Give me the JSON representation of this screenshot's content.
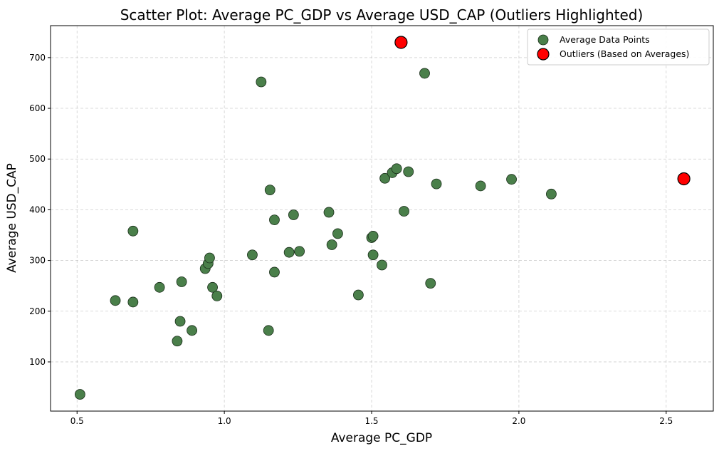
{
  "chart_data": {
    "type": "scatter",
    "title": "Scatter Plot: Average PC_GDP vs Average USD_CAP (Outliers Highlighted)",
    "xlabel": "Average PC_GDP",
    "ylabel": "Average USD_CAP",
    "xlim": [
      0.41,
      2.66
    ],
    "ylim": [
      3,
      763
    ],
    "xticks": [
      0.5,
      1.0,
      1.5,
      2.0,
      2.5
    ],
    "xtick_labels": [
      "0.5",
      "1.0",
      "1.5",
      "2.0",
      "2.5"
    ],
    "yticks": [
      100,
      200,
      300,
      400,
      500,
      600,
      700
    ],
    "ytick_labels": [
      "100",
      "200",
      "300",
      "400",
      "500",
      "600",
      "700"
    ],
    "grid": true,
    "legend_position": "top-right",
    "series": [
      {
        "name": "Average Data Points",
        "color": "#4a7f4a",
        "edge_color": "#1a2e1a",
        "points": [
          [
            0.51,
            36
          ],
          [
            0.63,
            221
          ],
          [
            0.69,
            218
          ],
          [
            0.69,
            358
          ],
          [
            0.78,
            247
          ],
          [
            0.84,
            141
          ],
          [
            0.85,
            180
          ],
          [
            0.855,
            258
          ],
          [
            0.89,
            162
          ],
          [
            0.935,
            284
          ],
          [
            0.945,
            294
          ],
          [
            0.95,
            305
          ],
          [
            0.96,
            247
          ],
          [
            0.975,
            230
          ],
          [
            1.095,
            311
          ],
          [
            1.125,
            652
          ],
          [
            1.15,
            162
          ],
          [
            1.155,
            439
          ],
          [
            1.17,
            380
          ],
          [
            1.17,
            277
          ],
          [
            1.22,
            316
          ],
          [
            1.235,
            390
          ],
          [
            1.255,
            318
          ],
          [
            1.355,
            395
          ],
          [
            1.365,
            331
          ],
          [
            1.385,
            353
          ],
          [
            1.455,
            232
          ],
          [
            1.5,
            345
          ],
          [
            1.505,
            348
          ],
          [
            1.505,
            311
          ],
          [
            1.535,
            291
          ],
          [
            1.545,
            462
          ],
          [
            1.57,
            473
          ],
          [
            1.585,
            481
          ],
          [
            1.61,
            397
          ],
          [
            1.625,
            475
          ],
          [
            1.68,
            669
          ],
          [
            1.7,
            255
          ],
          [
            1.72,
            451
          ],
          [
            1.87,
            447
          ],
          [
            1.975,
            460
          ],
          [
            2.11,
            431
          ]
        ]
      },
      {
        "name": "Outliers (Based on Averages)",
        "color": "#ff0000",
        "edge_color": "#000000",
        "points": [
          [
            1.6,
            730
          ],
          [
            2.56,
            461
          ]
        ]
      }
    ]
  }
}
